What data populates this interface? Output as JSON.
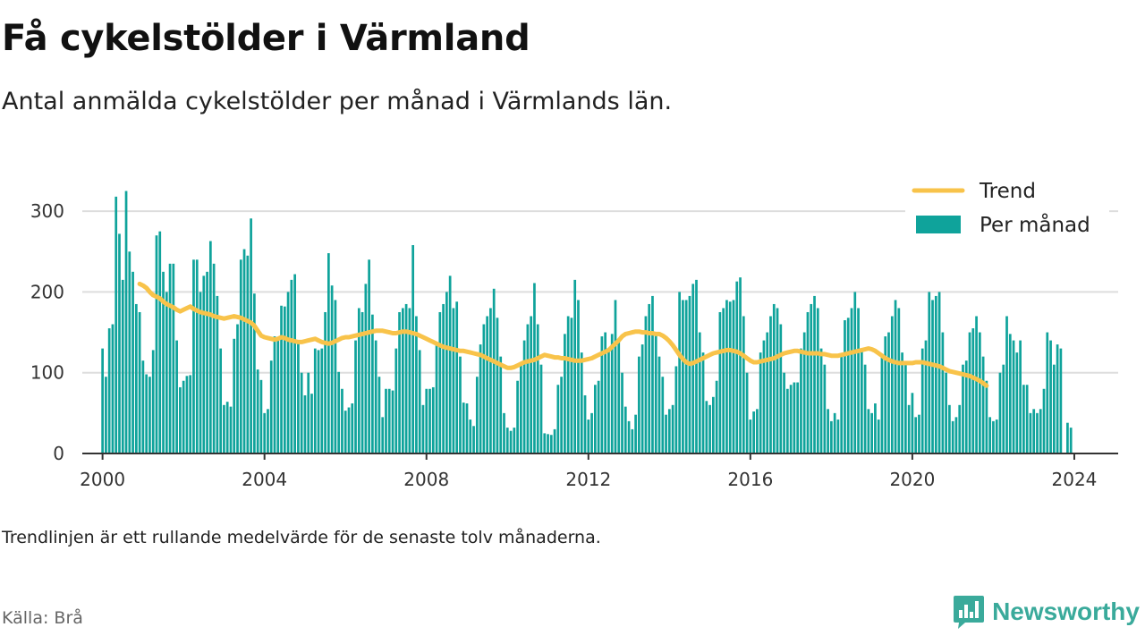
{
  "title": "Få cykelstölder i Värmland",
  "subtitle": "Antal anmälda cykelstölder per månad i Värmlands län.",
  "footnote": "Trendlinjen är ett rullande medelvärde för de senaste tolv månaderna.",
  "source": "Källa: Brå",
  "brand": {
    "name": "Newsworthy",
    "logo_icon": "chat-bubble-bar-chart-icon"
  },
  "colors": {
    "bars": "#0fa39b",
    "trend": "#f8c34a",
    "grid": "#dddddd",
    "axis": "#333333",
    "brand": "#3aaa9b"
  },
  "chart_data": {
    "type": "bar",
    "x_start": "2000-01",
    "x_end": "2023-12",
    "xlim": [
      "1999-07",
      "2025-02"
    ],
    "ylim": [
      0,
      340
    ],
    "yticks": [
      0,
      100,
      200,
      300
    ],
    "xticks": [
      "2000",
      "2004",
      "2008",
      "2012",
      "2016",
      "2020",
      "2024"
    ],
    "grid": true,
    "legend_position": "top-right",
    "series": [
      {
        "name": "Per månad",
        "type": "bar",
        "values": [
          130,
          95,
          155,
          160,
          318,
          272,
          215,
          325,
          250,
          225,
          185,
          175,
          115,
          98,
          95,
          128,
          270,
          275,
          225,
          200,
          235,
          235,
          140,
          82,
          90,
          96,
          97,
          240,
          240,
          200,
          220,
          225,
          263,
          235,
          195,
          130,
          60,
          64,
          58,
          142,
          160,
          240,
          253,
          245,
          291,
          198,
          104,
          91,
          50,
          55,
          115,
          145,
          140,
          183,
          182,
          200,
          215,
          222,
          140,
          100,
          72,
          100,
          74,
          130,
          128,
          130,
          175,
          248,
          208,
          190,
          101,
          80,
          53,
          57,
          62,
          140,
          180,
          175,
          210,
          240,
          172,
          140,
          95,
          45,
          80,
          80,
          78,
          130,
          175,
          180,
          185,
          180,
          258,
          170,
          128,
          60,
          80,
          80,
          82,
          135,
          175,
          185,
          200,
          220,
          180,
          188,
          120,
          63,
          62,
          42,
          34,
          95,
          135,
          160,
          170,
          180,
          204,
          168,
          120,
          50,
          32,
          28,
          32,
          90,
          110,
          140,
          160,
          170,
          211,
          160,
          110,
          25,
          24,
          23,
          30,
          85,
          95,
          148,
          170,
          168,
          215,
          190,
          125,
          72,
          42,
          50,
          85,
          90,
          145,
          150,
          130,
          148,
          190,
          141,
          100,
          58,
          40,
          30,
          48,
          120,
          135,
          170,
          185,
          195,
          150,
          120,
          95,
          48,
          55,
          60,
          108,
          200,
          190,
          190,
          195,
          210,
          215,
          150,
          125,
          65,
          60,
          70,
          90,
          175,
          180,
          190,
          188,
          190,
          213,
          218,
          170,
          100,
          42,
          52,
          55,
          125,
          140,
          150,
          170,
          185,
          180,
          160,
          100,
          80,
          85,
          88,
          88,
          130,
          150,
          175,
          185,
          195,
          180,
          130,
          110,
          55,
          40,
          50,
          42,
          120,
          165,
          168,
          180,
          200,
          180,
          130,
          110,
          55,
          50,
          62,
          42,
          120,
          145,
          150,
          170,
          190,
          180,
          125,
          110,
          60,
          75,
          45,
          48,
          130,
          140,
          200,
          190,
          195,
          200,
          150,
          100,
          60,
          40,
          45,
          60,
          110,
          115,
          150,
          155,
          170,
          150,
          120,
          90,
          45,
          40,
          42,
          100,
          110,
          170,
          148,
          140,
          125,
          140,
          85,
          85,
          50,
          55,
          50,
          55,
          80,
          150,
          140,
          110,
          135,
          130,
          0,
          38,
          32
        ]
      },
      {
        "name": "Trend",
        "type": "line",
        "x_start": "2000-12",
        "values": [
          210,
          208,
          205,
          200,
          196,
          194,
          192,
          188,
          185,
          183,
          181,
          178,
          176,
          178,
          180,
          182,
          179,
          177,
          175,
          174,
          173,
          172,
          170,
          169,
          168,
          167,
          168,
          169,
          170,
          169,
          168,
          166,
          164,
          162,
          158,
          152,
          146,
          144,
          143,
          142,
          141,
          142,
          144,
          143,
          141,
          140,
          139,
          138,
          138,
          139,
          140,
          141,
          142,
          140,
          138,
          137,
          136,
          137,
          139,
          141,
          143,
          144,
          144,
          145,
          146,
          147,
          148,
          149,
          150,
          151,
          152,
          152,
          152,
          151,
          150,
          149,
          149,
          150,
          151,
          151,
          150,
          149,
          148,
          146,
          144,
          142,
          140,
          138,
          136,
          134,
          132,
          131,
          130,
          129,
          128,
          127,
          127,
          126,
          125,
          124,
          123,
          122,
          120,
          118,
          116,
          114,
          112,
          110,
          108,
          106,
          106,
          107,
          109,
          111,
          113,
          114,
          115,
          116,
          118,
          120,
          122,
          121,
          120,
          119,
          119,
          118,
          118,
          117,
          116,
          115,
          115,
          115,
          116,
          117,
          118,
          120,
          122,
          124,
          126,
          128,
          132,
          136,
          140,
          145,
          148,
          149,
          150,
          151,
          151,
          150,
          150,
          149,
          149,
          148,
          148,
          146,
          143,
          139,
          134,
          128,
          122,
          117,
          113,
          111,
          112,
          114,
          116,
          118,
          120,
          122,
          124,
          125,
          126,
          127,
          128,
          128,
          127,
          126,
          124,
          121,
          118,
          115,
          113,
          113,
          114,
          115,
          116,
          117,
          118,
          120,
          122,
          124,
          125,
          126,
          127,
          127,
          126,
          125,
          124,
          124,
          124,
          124,
          123,
          123,
          122,
          121,
          121,
          121,
          122,
          123,
          124,
          125,
          126,
          127,
          128,
          129,
          130,
          129,
          127,
          124,
          121,
          118,
          116,
          114,
          113,
          112,
          112,
          112,
          112,
          112,
          113,
          113,
          113,
          112,
          111,
          110,
          109,
          108,
          106,
          104,
          102,
          101,
          100,
          99,
          98,
          97,
          96,
          94,
          92,
          90,
          87,
          84
        ]
      }
    ]
  }
}
